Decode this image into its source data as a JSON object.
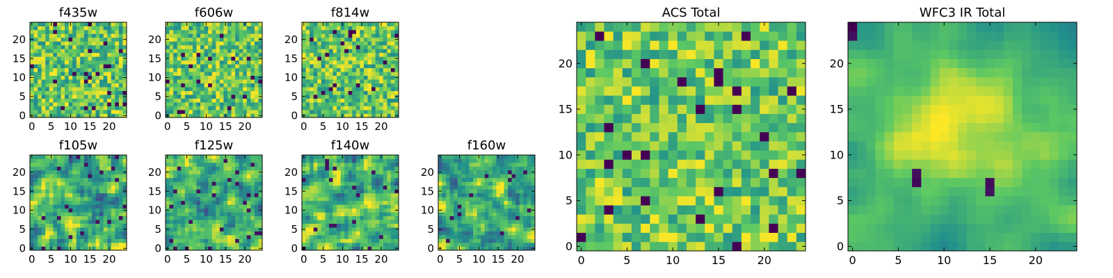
{
  "chart_data": [
    {
      "type": "heatmap",
      "title": "f435w",
      "xticks": [
        "0",
        "5",
        "10",
        "15",
        "20"
      ],
      "yticks": [
        "0",
        "5",
        "10",
        "15",
        "20"
      ],
      "xlim": [
        -0.5,
        24.5
      ],
      "ylim": [
        -0.5,
        24.5
      ],
      "grid_size": [
        25,
        25
      ],
      "colormap": "viridis",
      "grid": false,
      "texture": "fine uniform noise"
    },
    {
      "type": "heatmap",
      "title": "f606w",
      "xticks": [
        "0",
        "5",
        "10",
        "15",
        "20"
      ],
      "yticks": [
        "0",
        "5",
        "10",
        "15",
        "20"
      ],
      "xlim": [
        -0.5,
        24.5
      ],
      "ylim": [
        -0.5,
        24.5
      ],
      "grid_size": [
        25,
        25
      ],
      "colormap": "viridis",
      "grid": false,
      "texture": "fine uniform noise"
    },
    {
      "type": "heatmap",
      "title": "f814w",
      "xticks": [
        "0",
        "5",
        "10",
        "15",
        "20"
      ],
      "yticks": [
        "0",
        "5",
        "10",
        "15",
        "20"
      ],
      "xlim": [
        -0.5,
        24.5
      ],
      "ylim": [
        -0.5,
        24.5
      ],
      "grid_size": [
        25,
        25
      ],
      "colormap": "viridis",
      "grid": false,
      "texture": "fine uniform noise"
    },
    {
      "type": "heatmap",
      "title": "f105w",
      "xticks": [
        "0",
        "5",
        "10",
        "15",
        "20"
      ],
      "yticks": [
        "0",
        "5",
        "10",
        "15",
        "20"
      ],
      "xlim": [
        -0.5,
        24.5
      ],
      "ylim": [
        -0.5,
        24.5
      ],
      "grid_size": [
        25,
        25
      ],
      "colormap": "viridis",
      "grid": false,
      "texture": "smooth blotchy"
    },
    {
      "type": "heatmap",
      "title": "f125w",
      "xticks": [
        "0",
        "5",
        "10",
        "15",
        "20"
      ],
      "yticks": [
        "0",
        "5",
        "10",
        "15",
        "20"
      ],
      "xlim": [
        -0.5,
        24.5
      ],
      "ylim": [
        -0.5,
        24.5
      ],
      "grid_size": [
        25,
        25
      ],
      "colormap": "viridis",
      "grid": false,
      "texture": "smooth blotchy"
    },
    {
      "type": "heatmap",
      "title": "f140w",
      "xticks": [
        "0",
        "5",
        "10",
        "15",
        "20"
      ],
      "yticks": [
        "0",
        "5",
        "10",
        "15",
        "20"
      ],
      "xlim": [
        -0.5,
        24.5
      ],
      "ylim": [
        -0.5,
        24.5
      ],
      "grid_size": [
        25,
        25
      ],
      "colormap": "viridis",
      "grid": false,
      "texture": "smooth blotchy"
    },
    {
      "type": "heatmap",
      "title": "f160w",
      "xticks": [
        "0",
        "5",
        "10",
        "15",
        "20"
      ],
      "yticks": [
        "0",
        "5",
        "10",
        "15",
        "20"
      ],
      "xlim": [
        -0.5,
        24.5
      ],
      "ylim": [
        -0.5,
        24.5
      ],
      "grid_size": [
        25,
        25
      ],
      "colormap": "viridis",
      "grid": false,
      "texture": "smooth blotchy"
    },
    {
      "type": "heatmap",
      "title": "ACS Total",
      "xticks": [
        "0",
        "5",
        "10",
        "15",
        "20"
      ],
      "yticks": [
        "0",
        "5",
        "10",
        "15",
        "20"
      ],
      "xlim": [
        -0.5,
        24.5
      ],
      "ylim": [
        -0.5,
        24.5
      ],
      "grid_size": [
        25,
        25
      ],
      "colormap": "viridis",
      "grid": false,
      "texture": "noise with dark pixels"
    },
    {
      "type": "heatmap",
      "title": "WFC3 IR Total",
      "xticks": [
        "0",
        "5",
        "10",
        "15",
        "20"
      ],
      "yticks": [
        "0",
        "5",
        "10",
        "15",
        "20"
      ],
      "xlim": [
        -0.5,
        24.5
      ],
      "ylim": [
        -0.5,
        24.5
      ],
      "grid_size": [
        25,
        25
      ],
      "colormap": "viridis",
      "grid": false,
      "texture": "smooth with bright central blob"
    }
  ]
}
